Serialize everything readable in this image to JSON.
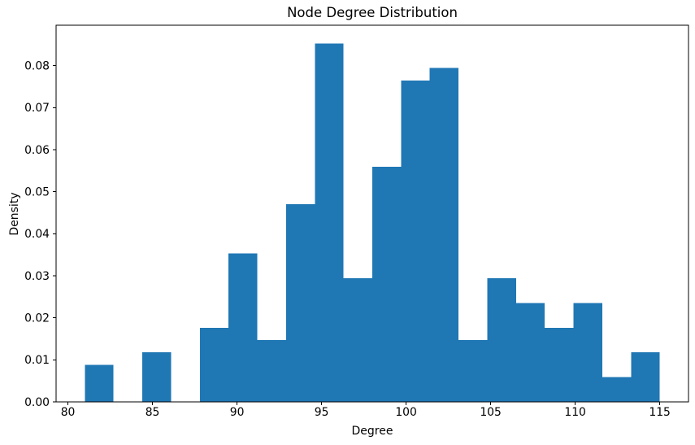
{
  "chart_data": {
    "type": "bar",
    "subtype": "histogram",
    "title": "Node Degree Distribution",
    "xlabel": "Degree",
    "ylabel": "Density",
    "bar_color": "#1f77b4",
    "axis_color": "#000000",
    "background_color": "#ffffff",
    "grid": false,
    "legend": null,
    "bin_edges": [
      81.0,
      82.7,
      84.4,
      86.1,
      87.8,
      89.5,
      91.2,
      92.9,
      94.6,
      96.3,
      98.0,
      99.7,
      101.4,
      103.1,
      104.8,
      106.5,
      108.2,
      109.9,
      111.6,
      113.3,
      115.0
    ],
    "values": [
      0.008824,
      0,
      0.011765,
      0,
      0.017647,
      0.035294,
      0.014706,
      0.047059,
      0.085294,
      0.029412,
      0.055882,
      0.076471,
      0.079412,
      0.014706,
      0.029412,
      0.023529,
      0.017647,
      0.023529,
      0.005882,
      0.011765
    ],
    "xlim": [
      79.3,
      116.7
    ],
    "ylim": [
      0,
      0.0896
    ],
    "xticks": [
      80,
      85,
      90,
      95,
      100,
      105,
      110,
      115
    ],
    "yticks": [
      0,
      0.01,
      0.02,
      0.03,
      0.04,
      0.05,
      0.06,
      0.07,
      0.08
    ],
    "ytick_decimals": 2
  }
}
